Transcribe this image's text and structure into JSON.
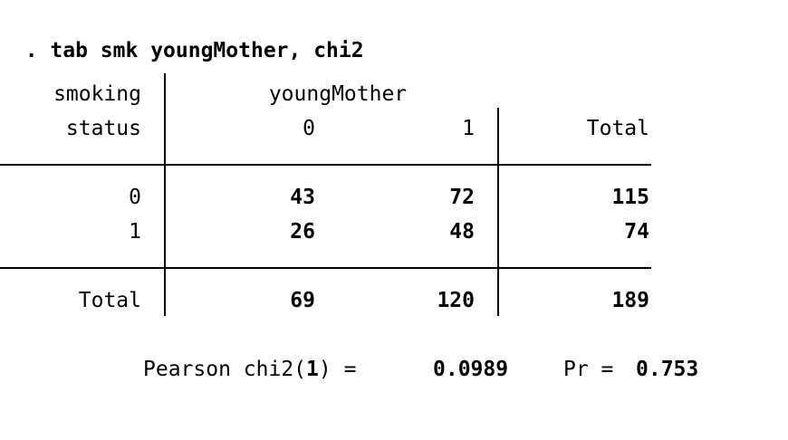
{
  "command": {
    "prompt": ".",
    "text": "tab smk youngMother, chi2"
  },
  "table": {
    "row_var_label_line1": "smoking",
    "row_var_label_line2": "status",
    "col_var": "youngMother",
    "col_headers": [
      "0",
      "1"
    ],
    "total_header": "Total",
    "rows": [
      {
        "label": "0",
        "cells": [
          "43",
          "72"
        ],
        "total": "115"
      },
      {
        "label": "1",
        "cells": [
          "26",
          "48"
        ],
        "total": "74"
      }
    ],
    "totals_row": {
      "label": "Total",
      "cells": [
        "69",
        "120"
      ],
      "total": "189"
    }
  },
  "stats": {
    "pearson_prefix": "Pearson chi2(",
    "df": "1",
    "pearson_suffix": ") =",
    "chi2_value": "0.0989",
    "pr_label": "Pr =",
    "pr_value": "0.753"
  }
}
